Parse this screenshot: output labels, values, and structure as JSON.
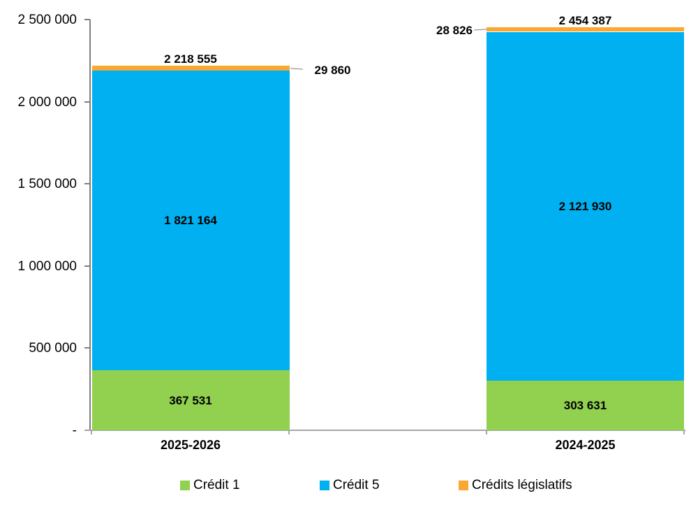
{
  "chart_data": {
    "type": "bar",
    "stacked": true,
    "title": "",
    "xlabel": "",
    "ylabel": "",
    "categories": [
      "2025-2026",
      "2024-2025"
    ],
    "series": [
      {
        "name": "Crédit 1",
        "color": "#92D050",
        "values": [
          367531,
          303631
        ],
        "labels": [
          "367 531",
          "303 631"
        ]
      },
      {
        "name": "Crédit 5",
        "color": "#00B0F0",
        "values": [
          1821164,
          2121930
        ],
        "labels": [
          "1 821 164",
          "2 121 930"
        ]
      },
      {
        "name": "Crédits législatifs",
        "color": "#FAA832",
        "values": [
          29860,
          28826
        ],
        "labels": [
          "29 860",
          "28 826"
        ]
      }
    ],
    "totals": [
      2218555,
      2454387
    ],
    "total_labels": [
      "2 218 555",
      "2 454 387"
    ],
    "ylim": [
      0,
      2500000
    ],
    "ytick_interval": 500000,
    "ytick_labels": [
      "-",
      "500 000",
      "1 000 000",
      "1 500 000",
      "2 000 000",
      "2 500 000"
    ],
    "grid": false,
    "legend_position": "bottom",
    "axis_colors": {
      "y_axis": "#7f7f7f",
      "x_axis": "#a6a6a6",
      "leader": "#7f7f7f"
    }
  }
}
